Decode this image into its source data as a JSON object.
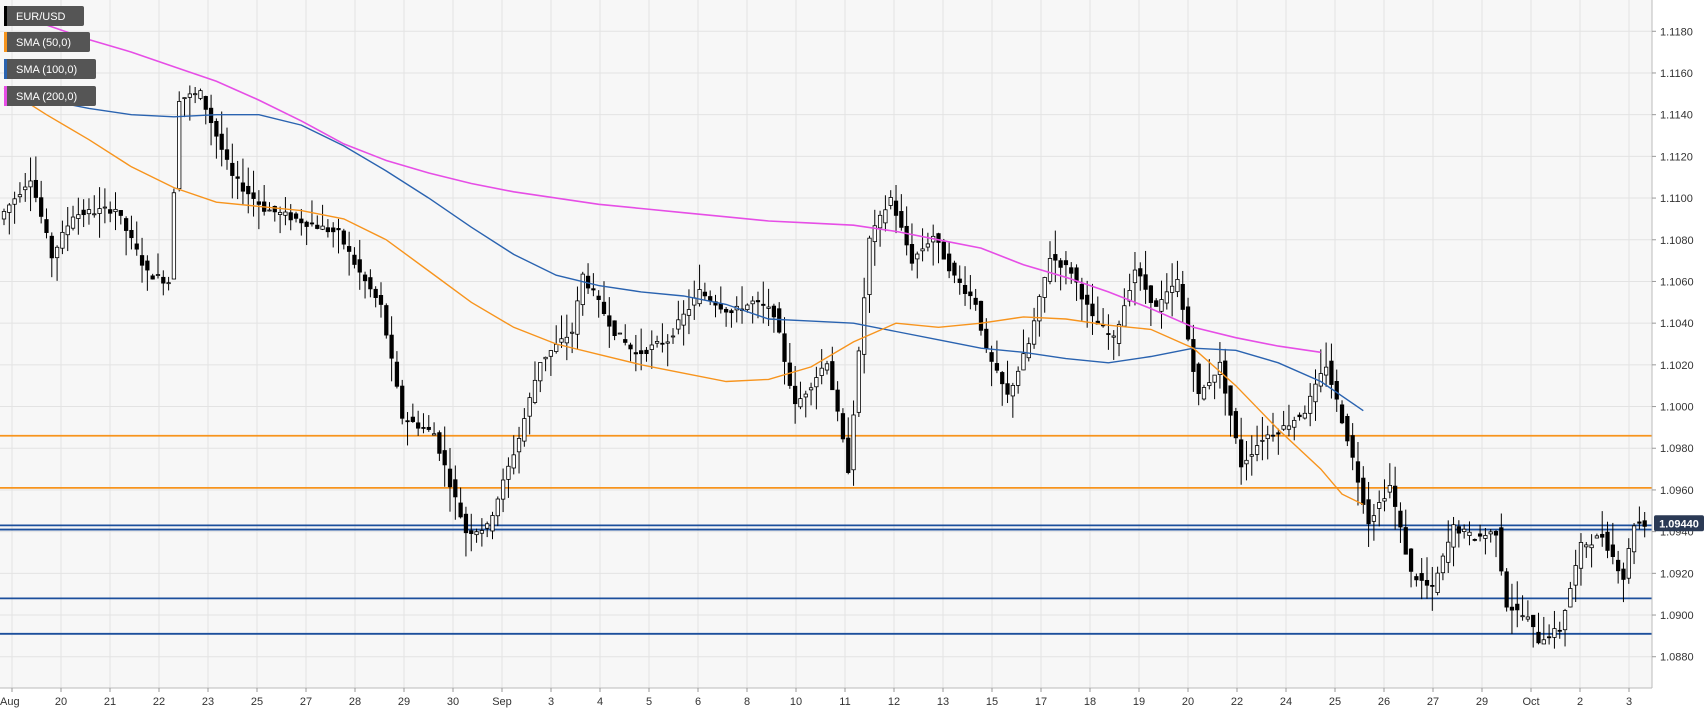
{
  "colors": {
    "background": "#f7f7f7",
    "grid": "#e3e3e3",
    "sma50": "#f7941d",
    "sma100": "#2a63b0",
    "sma200": "#e64ee6",
    "resistance": "#f7941d",
    "support": "#1c4f9c",
    "candle_up": "#ffffff",
    "candle_down": "#000000",
    "candle_outline": "#000000",
    "legend_bg": "#555555",
    "price_badge": "#2b3a55"
  },
  "legend": [
    {
      "label": "EUR/USD",
      "color": "#000000"
    },
    {
      "label": "SMA (50,0)",
      "color": "#f7941d"
    },
    {
      "label": "SMA (100,0)",
      "color": "#2a63b0"
    },
    {
      "label": "SMA (200,0)",
      "color": "#e64ee6"
    }
  ],
  "current_price_label": "1.09440",
  "chart_data": {
    "type": "candlestick",
    "symbol": "EUR/USD",
    "ylim": [
      1.0865,
      1.1195
    ],
    "y_ticks": [
      "1.0880",
      "1.0900",
      "1.0920",
      "1.0940",
      "1.0960",
      "1.0980",
      "1.1000",
      "1.1020",
      "1.1040",
      "1.1060",
      "1.1080",
      "1.1100",
      "1.1120",
      "1.1140",
      "1.1160",
      "1.1180"
    ],
    "x_ticks": [
      "Aug",
      "20",
      "21",
      "22",
      "23",
      "25",
      "27",
      "28",
      "29",
      "30",
      "Sep",
      "3",
      "4",
      "5",
      "6",
      "8",
      "10",
      "11",
      "12",
      "13",
      "15",
      "17",
      "18",
      "19",
      "20",
      "22",
      "24",
      "25",
      "26",
      "27",
      "29",
      "Oct",
      "2",
      "3"
    ],
    "current_price": 1.0944,
    "horizontal_lines": [
      {
        "kind": "resistance",
        "value": 1.0986
      },
      {
        "kind": "resistance",
        "value": 1.0961
      },
      {
        "kind": "support",
        "value": 1.0943
      },
      {
        "kind": "support",
        "value": 1.0941
      },
      {
        "kind": "support",
        "value": 1.0908
      },
      {
        "kind": "support",
        "value": 1.0891
      }
    ],
    "sma50": [
      [
        0,
        1.1153
      ],
      [
        8,
        1.114
      ],
      [
        16,
        1.1128
      ],
      [
        24,
        1.1115
      ],
      [
        32,
        1.1105
      ],
      [
        40,
        1.1098
      ],
      [
        48,
        1.1096
      ],
      [
        56,
        1.1094
      ],
      [
        64,
        1.109
      ],
      [
        72,
        1.108
      ],
      [
        80,
        1.1065
      ],
      [
        88,
        1.105
      ],
      [
        96,
        1.1038
      ],
      [
        104,
        1.103
      ],
      [
        112,
        1.1025
      ],
      [
        120,
        1.102
      ],
      [
        128,
        1.1016
      ],
      [
        136,
        1.1012
      ],
      [
        144,
        1.1013
      ],
      [
        152,
        1.1019
      ],
      [
        160,
        1.1031
      ],
      [
        168,
        1.104
      ],
      [
        176,
        1.1038
      ],
      [
        184,
        1.104
      ],
      [
        192,
        1.1043
      ],
      [
        200,
        1.1042
      ],
      [
        208,
        1.1039
      ],
      [
        216,
        1.1037
      ],
      [
        224,
        1.1028
      ],
      [
        232,
        1.101
      ],
      [
        240,
        1.0989
      ],
      [
        248,
        1.097
      ],
      [
        252,
        1.0958
      ],
      [
        256,
        1.0953
      ]
    ],
    "sma100": [
      [
        0,
        1.115
      ],
      [
        8,
        1.1147
      ],
      [
        16,
        1.1143
      ],
      [
        24,
        1.114
      ],
      [
        32,
        1.1139
      ],
      [
        40,
        1.114
      ],
      [
        48,
        1.114
      ],
      [
        56,
        1.1135
      ],
      [
        64,
        1.1125
      ],
      [
        72,
        1.1113
      ],
      [
        80,
        1.11
      ],
      [
        88,
        1.1086
      ],
      [
        96,
        1.1073
      ],
      [
        104,
        1.1063
      ],
      [
        112,
        1.1058
      ],
      [
        120,
        1.1055
      ],
      [
        128,
        1.1053
      ],
      [
        136,
        1.1049
      ],
      [
        144,
        1.1042
      ],
      [
        152,
        1.1041
      ],
      [
        160,
        1.104
      ],
      [
        168,
        1.1036
      ],
      [
        176,
        1.1032
      ],
      [
        184,
        1.1028
      ],
      [
        192,
        1.1026
      ],
      [
        200,
        1.1023
      ],
      [
        208,
        1.1021
      ],
      [
        216,
        1.1024
      ],
      [
        224,
        1.1028
      ],
      [
        232,
        1.1027
      ],
      [
        240,
        1.1021
      ],
      [
        248,
        1.1012
      ],
      [
        256,
        1.0998
      ]
    ],
    "sma200": [
      [
        0,
        1.1189
      ],
      [
        8,
        1.1183
      ],
      [
        16,
        1.1176
      ],
      [
        24,
        1.117
      ],
      [
        32,
        1.1163
      ],
      [
        40,
        1.1156
      ],
      [
        48,
        1.1147
      ],
      [
        56,
        1.1137
      ],
      [
        64,
        1.1126
      ],
      [
        72,
        1.1118
      ],
      [
        80,
        1.1112
      ],
      [
        88,
        1.1107
      ],
      [
        96,
        1.1103
      ],
      [
        104,
        1.11
      ],
      [
        112,
        1.1097
      ],
      [
        120,
        1.1095
      ],
      [
        128,
        1.1093
      ],
      [
        136,
        1.1091
      ],
      [
        144,
        1.1089
      ],
      [
        152,
        1.1088
      ],
      [
        160,
        1.1087
      ],
      [
        168,
        1.1084
      ],
      [
        176,
        1.108
      ],
      [
        184,
        1.1076
      ],
      [
        192,
        1.1068
      ],
      [
        200,
        1.1062
      ],
      [
        208,
        1.1055
      ],
      [
        216,
        1.1047
      ],
      [
        224,
        1.1038
      ],
      [
        232,
        1.1033
      ],
      [
        240,
        1.1029
      ],
      [
        248,
        1.1026
      ]
    ],
    "waypoints": [
      [
        0,
        1.109
      ],
      [
        6,
        1.111
      ],
      [
        10,
        1.1072
      ],
      [
        14,
        1.1092
      ],
      [
        22,
        1.1095
      ],
      [
        28,
        1.1064
      ],
      [
        32,
        1.106
      ],
      [
        34,
        1.1148
      ],
      [
        38,
        1.115
      ],
      [
        44,
        1.111
      ],
      [
        50,
        1.1095
      ],
      [
        56,
        1.109
      ],
      [
        64,
        1.1083
      ],
      [
        68,
        1.1064
      ],
      [
        72,
        1.1048
      ],
      [
        76,
        1.0995
      ],
      [
        82,
        1.0987
      ],
      [
        88,
        1.094
      ],
      [
        92,
        1.0942
      ],
      [
        98,
        1.0985
      ],
      [
        102,
        1.1022
      ],
      [
        108,
        1.1036
      ],
      [
        110,
        1.1063
      ],
      [
        116,
        1.1036
      ],
      [
        120,
        1.1025
      ],
      [
        126,
        1.1032
      ],
      [
        132,
        1.1055
      ],
      [
        138,
        1.1045
      ],
      [
        142,
        1.105
      ],
      [
        146,
        1.1045
      ],
      [
        150,
        1.1
      ],
      [
        156,
        1.1022
      ],
      [
        160,
        1.097
      ],
      [
        164,
        1.108
      ],
      [
        168,
        1.11
      ],
      [
        172,
        1.107
      ],
      [
        176,
        1.1082
      ],
      [
        180,
        1.1062
      ],
      [
        184,
        1.105
      ],
      [
        186,
        1.1026
      ],
      [
        190,
        1.1005
      ],
      [
        194,
        1.103
      ],
      [
        198,
        1.1072
      ],
      [
        202,
        1.1065
      ],
      [
        206,
        1.1042
      ],
      [
        210,
        1.1032
      ],
      [
        214,
        1.1066
      ],
      [
        218,
        1.1047
      ],
      [
        222,
        1.106
      ],
      [
        226,
        1.1005
      ],
      [
        230,
        1.102
      ],
      [
        234,
        1.0972
      ],
      [
        238,
        1.0985
      ],
      [
        242,
        1.099
      ],
      [
        246,
        1.0998
      ],
      [
        250,
        1.102
      ],
      [
        254,
        1.0985
      ],
      [
        258,
        1.0945
      ],
      [
        262,
        1.0962
      ],
      [
        266,
        1.092
      ],
      [
        270,
        1.0912
      ],
      [
        274,
        1.0942
      ],
      [
        278,
        1.0937
      ],
      [
        282,
        1.094
      ],
      [
        284,
        1.0905
      ],
      [
        288,
        1.0898
      ],
      [
        290,
        1.0888
      ],
      [
        294,
        1.0893
      ],
      [
        298,
        1.0933
      ],
      [
        302,
        1.0938
      ],
      [
        306,
        1.0918
      ],
      [
        308,
        1.0944
      ]
    ]
  }
}
